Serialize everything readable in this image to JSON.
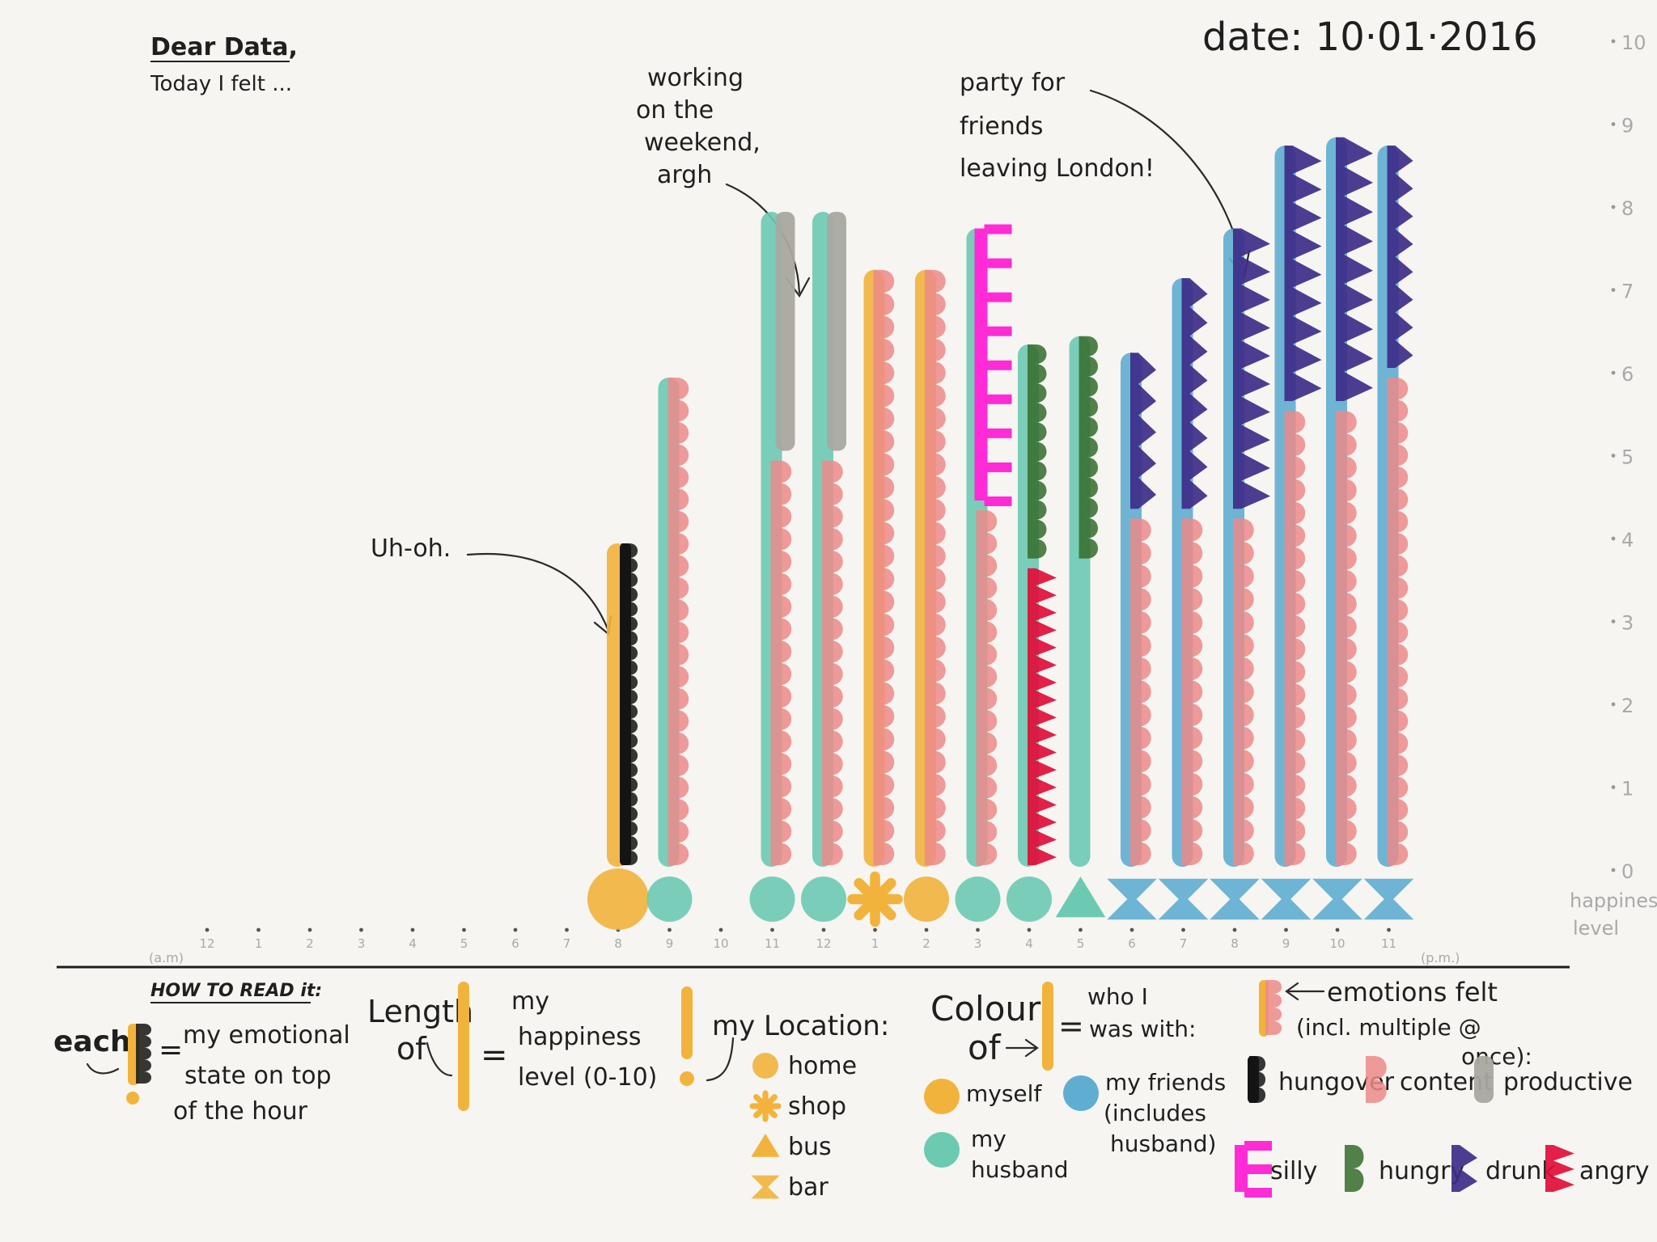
{
  "header": {
    "greeting": "Dear Data,",
    "subtitle": "Today I felt ...",
    "date": "date: 10·01·2016"
  },
  "annotations": [
    {
      "id": "uh-oh",
      "lines": [
        "Uh-oh."
      ]
    },
    {
      "id": "working",
      "lines": [
        "working",
        "on the",
        "weekend,",
        "argh"
      ]
    },
    {
      "id": "party",
      "lines": [
        "party for",
        "friends",
        "leaving London!"
      ]
    }
  ],
  "axis": {
    "x_start_label": "(a.m)",
    "x_end_label": "(p.m.)",
    "y_caption": [
      "happiness",
      "level"
    ]
  },
  "chart_data": {
    "type": "bar",
    "title": "Dear Data,",
    "subtitle": "Today I felt ...",
    "x_tick_labels": [
      "12",
      "1",
      "2",
      "3",
      "4",
      "5",
      "6",
      "7",
      "8",
      "9",
      "10",
      "11",
      "12",
      "1",
      "2",
      "3",
      "4",
      "5",
      "6",
      "7",
      "8",
      "9",
      "10",
      "11"
    ],
    "y_tick_labels": [
      "0",
      "1",
      "2",
      "3",
      "4",
      "5",
      "6",
      "7",
      "8",
      "9",
      "10"
    ],
    "ylim": [
      0,
      10
    ],
    "hours": [
      {
        "hour": 8,
        "happiness": 4,
        "who": "myself",
        "location": "home",
        "emotions": [
          {
            "name": "hungover",
            "from": 0,
            "to": 4
          }
        ]
      },
      {
        "hour": 9,
        "happiness": 6,
        "who": "my husband",
        "location": "home",
        "emotions": [
          {
            "name": "content",
            "from": 0,
            "to": 6
          }
        ]
      },
      {
        "hour": 11,
        "happiness": 8,
        "who": "my husband",
        "location": "home",
        "emotions": [
          {
            "name": "content",
            "from": 0,
            "to": 5
          },
          {
            "name": "productive",
            "from": 5,
            "to": 8
          }
        ]
      },
      {
        "hour": 12,
        "happiness": 8,
        "who": "my husband",
        "location": "home",
        "emotions": [
          {
            "name": "content",
            "from": 0,
            "to": 5
          },
          {
            "name": "productive",
            "from": 5,
            "to": 8
          }
        ]
      },
      {
        "hour": 13,
        "happiness": 7.3,
        "who": "myself",
        "location": "shop",
        "emotions": [
          {
            "name": "content",
            "from": 0,
            "to": 7.3
          }
        ]
      },
      {
        "hour": 14,
        "happiness": 7.3,
        "who": "myself",
        "location": "home",
        "emotions": [
          {
            "name": "content",
            "from": 0,
            "to": 7.3
          }
        ]
      },
      {
        "hour": 15,
        "happiness": 7.8,
        "who": "my husband",
        "location": "home",
        "emotions": [
          {
            "name": "content",
            "from": 0,
            "to": 4.4
          },
          {
            "name": "silly",
            "from": 4.4,
            "to": 7.8
          }
        ]
      },
      {
        "hour": 16,
        "happiness": 6.4,
        "who": "my husband",
        "location": "home",
        "emotions": [
          {
            "name": "angry",
            "from": 0,
            "to": 3.7
          },
          {
            "name": "hungry",
            "from": 3.7,
            "to": 6.4
          }
        ]
      },
      {
        "hour": 17,
        "happiness": 6.5,
        "who": "my husband",
        "location": "bus",
        "emotions": [
          {
            "name": "hungry",
            "from": 3.7,
            "to": 6.5
          }
        ]
      },
      {
        "hour": 18,
        "happiness": 6.3,
        "who": "my friends (includes husband)",
        "location": "bar",
        "emotions": [
          {
            "name": "content",
            "from": 0,
            "to": 4.3
          },
          {
            "name": "drunk",
            "from": 4.3,
            "to": 6.3
          }
        ]
      },
      {
        "hour": 19,
        "happiness": 7.2,
        "who": "my friends (includes husband)",
        "location": "bar",
        "emotions": [
          {
            "name": "content",
            "from": 0,
            "to": 4.3
          },
          {
            "name": "drunk",
            "from": 4.3,
            "to": 7.2
          }
        ]
      },
      {
        "hour": 20,
        "happiness": 7.8,
        "who": "my friends (includes husband)",
        "location": "bar",
        "emotions": [
          {
            "name": "content",
            "from": 0,
            "to": 4.3
          },
          {
            "name": "drunk",
            "from": 4.3,
            "to": 7.8
          }
        ]
      },
      {
        "hour": 21,
        "happiness": 8.8,
        "who": "my friends (includes husband)",
        "location": "bar",
        "emotions": [
          {
            "name": "content",
            "from": 0,
            "to": 5.6
          },
          {
            "name": "drunk",
            "from": 5.6,
            "to": 8.8
          }
        ]
      },
      {
        "hour": 22,
        "happiness": 8.9,
        "who": "my friends (includes husband)",
        "location": "bar",
        "emotions": [
          {
            "name": "content",
            "from": 0,
            "to": 5.6
          },
          {
            "name": "drunk",
            "from": 5.6,
            "to": 8.9
          }
        ]
      },
      {
        "hour": 23,
        "happiness": 8.8,
        "who": "my friends (includes husband)",
        "location": "bar",
        "emotions": [
          {
            "name": "content",
            "from": 0,
            "to": 6
          },
          {
            "name": "drunk",
            "from": 6,
            "to": 8.8
          }
        ]
      }
    ]
  },
  "colors": {
    "myself": "#f2b33d",
    "my husband": "#6dcab2",
    "my friends (includes husband)": "#5fadd0",
    "hungover": "#141414",
    "content": "#ec8a8a",
    "productive": "#a8a8a0",
    "silly": "#ff2bd6",
    "hungry": "#356b2b",
    "drunk": "#3d2d88",
    "angry": "#e00d3a"
  },
  "legend": {
    "how_to_read": "HOW TO READ it:",
    "each_word": "each",
    "each_desc": [
      "my emotional",
      "state on top",
      "of the hour"
    ],
    "length_word": [
      "Length",
      "of"
    ],
    "length_desc": [
      "my",
      "happiness",
      "level (0-10)"
    ],
    "location_title": "my Location:",
    "locations": [
      {
        "shape": "circle",
        "label": "home"
      },
      {
        "shape": "asterisk",
        "label": "shop"
      },
      {
        "shape": "triangle",
        "label": "bus"
      },
      {
        "shape": "bowtie",
        "label": "bar"
      }
    ],
    "colour_word": [
      "Colour",
      "of"
    ],
    "colour_desc": [
      "who I",
      "was with:"
    ],
    "who": [
      {
        "key": "myself",
        "lines": [
          "myself"
        ]
      },
      {
        "key": "my husband",
        "lines": [
          "my",
          "husband"
        ]
      },
      {
        "key": "my friends (includes husband)",
        "lines": [
          "my friends",
          "(includes",
          "husband)"
        ]
      }
    ],
    "emotions_title": [
      "emotions felt",
      "(incl. multiple @",
      "once):"
    ],
    "emotions": [
      {
        "key": "hungover",
        "label": "hungover"
      },
      {
        "key": "content",
        "label": "content"
      },
      {
        "key": "productive",
        "label": "productive"
      },
      {
        "key": "silly",
        "label": "silly"
      },
      {
        "key": "hungry",
        "label": "hungry"
      },
      {
        "key": "drunk",
        "label": "drunk"
      },
      {
        "key": "angry",
        "label": "angry"
      }
    ]
  }
}
